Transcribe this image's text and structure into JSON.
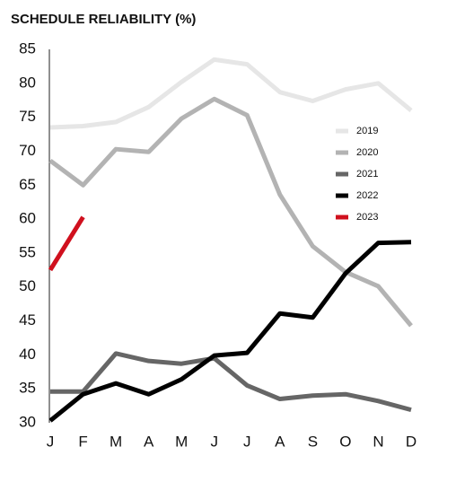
{
  "chart_data": {
    "type": "line",
    "title": "SCHEDULE RELIABILITY (%)",
    "categories": [
      "J",
      "F",
      "M",
      "A",
      "M",
      "J",
      "J",
      "A",
      "S",
      "O",
      "N",
      "D"
    ],
    "series": [
      {
        "name": "2019",
        "color": "#e6e6e6",
        "values": [
          73.5,
          73.7,
          74.3,
          76.5,
          80.2,
          83.5,
          82.8,
          78.7,
          77.4,
          79.1,
          80,
          76
        ]
      },
      {
        "name": "2020",
        "color": "#b3b3b3",
        "values": [
          68.6,
          65,
          70.3,
          69.9,
          74.8,
          77.7,
          75.3,
          63.6,
          56,
          52.2,
          50.1,
          44.3
        ]
      },
      {
        "name": "2021",
        "color": "#666666",
        "values": [
          34.6,
          34.6,
          40.2,
          39.1,
          38.7,
          39.5,
          35.5,
          33.5,
          34,
          34.2,
          33.2,
          31.9
        ]
      },
      {
        "name": "2022",
        "color": "#000000",
        "values": [
          30.3,
          34.2,
          35.8,
          34.2,
          36.4,
          39.9,
          40.3,
          46.1,
          45.5,
          52,
          56.5,
          56.6
        ]
      },
      {
        "name": "2023",
        "color": "#d0101e",
        "values": [
          52.5,
          60.3,
          null,
          null,
          null,
          null,
          null,
          null,
          null,
          null,
          null,
          null
        ]
      }
    ],
    "ylim": [
      30,
      85
    ],
    "yticks": [
      30,
      35,
      40,
      45,
      50,
      55,
      60,
      65,
      70,
      75,
      80,
      85
    ],
    "grid": false,
    "legend": "right"
  }
}
